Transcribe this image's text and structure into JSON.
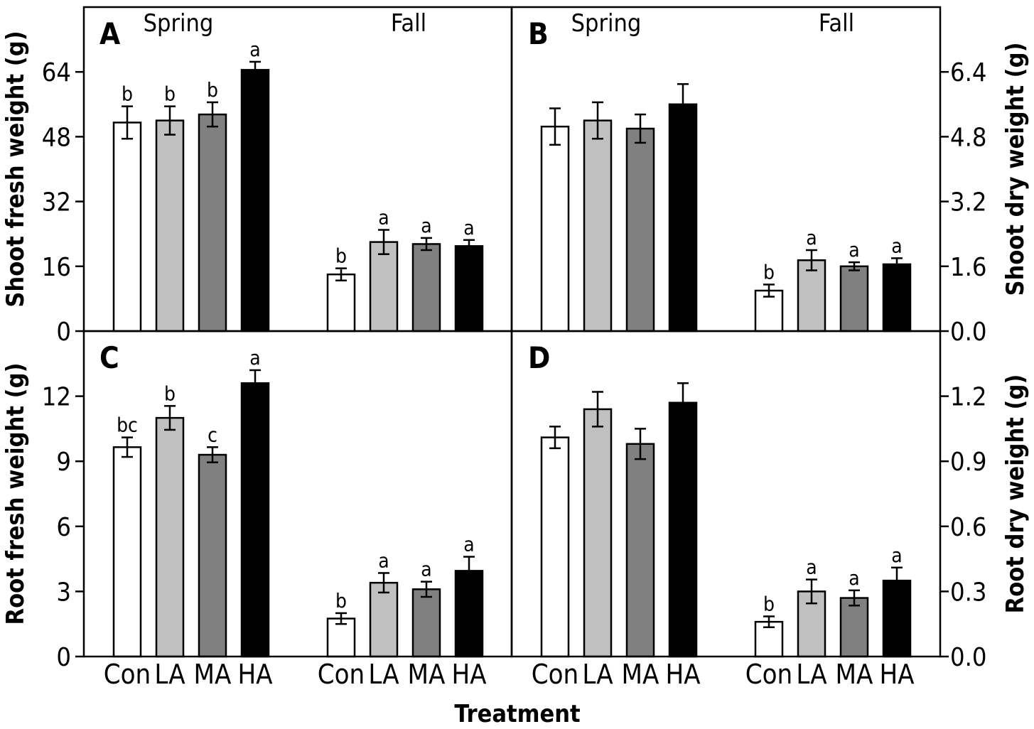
{
  "chart_data": [
    {
      "panel": "A",
      "type": "bar",
      "ylabel": "Shoot fresh weight (g)",
      "ylim": [
        0,
        80
      ],
      "yticks": [
        "0",
        "16",
        "32",
        "48",
        "64"
      ],
      "groups": [
        "Spring",
        "Fall"
      ],
      "categories": [
        "Con",
        "LA",
        "MA",
        "HA"
      ],
      "series": [
        {
          "group": "Spring",
          "values": [
            51.5,
            52.0,
            53.5,
            64.5
          ],
          "errors": [
            4.0,
            3.5,
            3.0,
            2.0
          ],
          "letters": [
            "b",
            "b",
            "b",
            "a"
          ]
        },
        {
          "group": "Fall",
          "values": [
            14.0,
            22.0,
            21.5,
            21.0
          ],
          "errors": [
            1.5,
            3.0,
            1.5,
            1.5
          ],
          "letters": [
            "b",
            "a",
            "a",
            "a"
          ]
        }
      ]
    },
    {
      "panel": "B",
      "type": "bar",
      "ylabel": "Shoot dry weight (g)",
      "ylim": [
        0,
        8
      ],
      "yticks": [
        "0.0",
        "1.6",
        "3.2",
        "4.8",
        "6.4"
      ],
      "groups": [
        "Spring",
        "Fall"
      ],
      "categories": [
        "Con",
        "LA",
        "MA",
        "HA"
      ],
      "series": [
        {
          "group": "Spring",
          "values": [
            5.05,
            5.2,
            5.0,
            5.6
          ],
          "errors": [
            0.45,
            0.45,
            0.35,
            0.5
          ],
          "letters": [
            "",
            "",
            "",
            ""
          ]
        },
        {
          "group": "Fall",
          "values": [
            1.0,
            1.75,
            1.6,
            1.65
          ],
          "errors": [
            0.15,
            0.25,
            0.1,
            0.15
          ],
          "letters": [
            "b",
            "a",
            "a",
            "a"
          ]
        }
      ]
    },
    {
      "panel": "C",
      "type": "bar",
      "ylabel": "Root fresh weight (g)",
      "ylim": [
        0,
        15
      ],
      "yticks": [
        "0",
        "3",
        "6",
        "9",
        "12"
      ],
      "groups": [
        "Spring",
        "Fall"
      ],
      "categories": [
        "Con",
        "LA",
        "MA",
        "HA"
      ],
      "series": [
        {
          "group": "Spring",
          "values": [
            9.65,
            11.0,
            9.3,
            12.6
          ],
          "errors": [
            0.45,
            0.55,
            0.35,
            0.6
          ],
          "letters": [
            "bc",
            "b",
            "c",
            "a"
          ]
        },
        {
          "group": "Fall",
          "values": [
            1.75,
            3.4,
            3.1,
            3.95
          ],
          "errors": [
            0.25,
            0.45,
            0.35,
            0.65
          ],
          "letters": [
            "b",
            "a",
            "a",
            "a"
          ]
        }
      ]
    },
    {
      "panel": "D",
      "type": "bar",
      "ylabel": "Root dry weight (g)",
      "ylim": [
        0,
        1.5
      ],
      "yticks": [
        "0.0",
        "0.3",
        "0.6",
        "0.9",
        "1.2"
      ],
      "groups": [
        "Spring",
        "Fall"
      ],
      "categories": [
        "Con",
        "LA",
        "MA",
        "HA"
      ],
      "series": [
        {
          "group": "Spring",
          "values": [
            1.01,
            1.14,
            0.98,
            1.17
          ],
          "errors": [
            0.05,
            0.08,
            0.07,
            0.09
          ],
          "letters": [
            "",
            "",
            "",
            ""
          ]
        },
        {
          "group": "Fall",
          "values": [
            0.16,
            0.3,
            0.27,
            0.35
          ],
          "errors": [
            0.025,
            0.055,
            0.035,
            0.06
          ],
          "letters": [
            "b",
            "a",
            "a",
            "a"
          ]
        }
      ]
    }
  ],
  "xlabel": "Treatment",
  "bar_colors": {
    "Con": "#ffffff",
    "LA": "#c0c0c0",
    "MA": "#808080",
    "HA": "#000000"
  }
}
